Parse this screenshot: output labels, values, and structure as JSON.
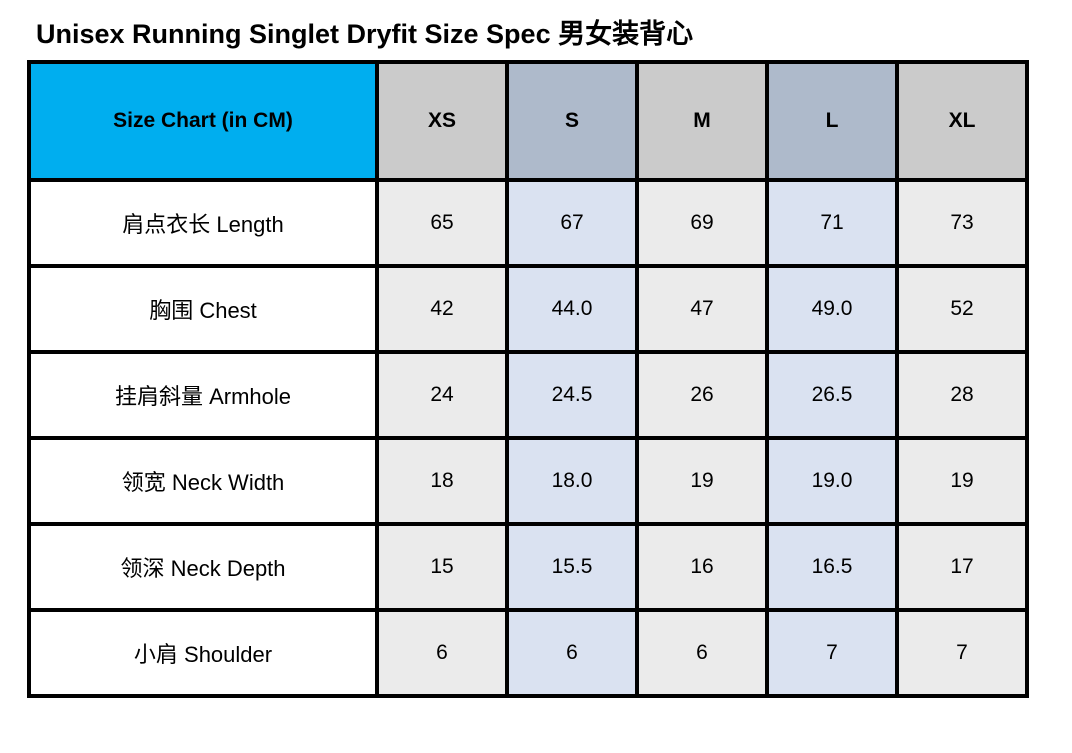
{
  "title": "Unisex Running Singlet Dryfit Size Spec 男女装背心",
  "chart_data": {
    "type": "table",
    "corner_label": "Size Chart (in CM)",
    "unit": "CM",
    "columns": [
      "XS",
      "S",
      "M",
      "L",
      "XL"
    ],
    "rows": [
      {
        "label": "肩点衣长 Length",
        "values": [
          "65",
          "67",
          "69",
          "71",
          "73"
        ]
      },
      {
        "label": "胸围 Chest",
        "values": [
          "42",
          "44.0",
          "47",
          "49.0",
          "52"
        ]
      },
      {
        "label": "挂肩斜量 Armhole",
        "values": [
          "24",
          "24.5",
          "26",
          "26.5",
          "28"
        ]
      },
      {
        "label": "领宽 Neck Width",
        "values": [
          "18",
          "18.0",
          "19",
          "19.0",
          "19"
        ]
      },
      {
        "label": "领深 Neck Depth",
        "values": [
          "15",
          "15.5",
          "16",
          "16.5",
          "17"
        ]
      },
      {
        "label": "小肩 Shoulder",
        "values": [
          "6",
          "6",
          "6",
          "7",
          "7"
        ]
      }
    ],
    "colors": {
      "corner_bg": "#00AEEF",
      "header_gray_bg": "#CBCBCB",
      "header_bluegray_bg": "#AEBACB",
      "cell_gray_bg": "#EBEBEB",
      "cell_blue_bg": "#DAE2F1",
      "border": "#000000",
      "text": "#000000"
    },
    "layout": {
      "grid": true,
      "highlighted_columns": [
        "S",
        "L"
      ]
    }
  }
}
